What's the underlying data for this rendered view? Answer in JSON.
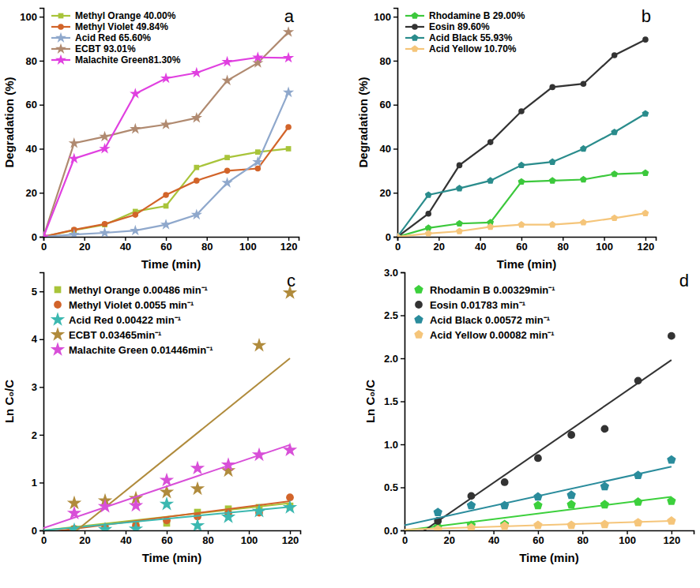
{
  "chart_data": [
    {
      "type": "line",
      "title": "a",
      "x_label": "Time (min)",
      "y_label": "Degradation (%)",
      "x": [
        0,
        15,
        30,
        45,
        60,
        75,
        90,
        105,
        120
      ],
      "xlim": [
        0,
        125
      ],
      "xticks": [
        0,
        20,
        40,
        60,
        80,
        100,
        120
      ],
      "ylim": [
        0,
        104
      ],
      "yticks": [
        0,
        20,
        40,
        60,
        80,
        100
      ],
      "legend": "upper left",
      "series": [
        {
          "name": "Methyl Orange 40.00%",
          "color": "#a8c43a",
          "marker": "square",
          "values": [
            0,
            3,
            5.5,
            11.5,
            14,
            31.5,
            36,
            38.5,
            40
          ]
        },
        {
          "name": "Methyl Violet 49.84%",
          "color": "#d2642a",
          "marker": "circle",
          "values": [
            0,
            3.2,
            5.8,
            10,
            19,
            25.5,
            30,
            31,
            49.84
          ]
        },
        {
          "name": "Acid Red 65.60%",
          "color": "#8fa8cc",
          "marker": "star",
          "values": [
            0,
            1,
            1.8,
            2.8,
            5.5,
            10,
            24.5,
            34,
            65.6
          ]
        },
        {
          "name": "ECBT 93.01%",
          "color": "#b08a70",
          "marker": "star",
          "values": [
            0,
            42.5,
            45.5,
            49,
            51,
            54,
            71,
            79,
            93.01
          ]
        },
        {
          "name": "Malachite Green81.30%",
          "color": "#e040e0",
          "marker": "star",
          "values": [
            0,
            35.5,
            40,
            65,
            72,
            74.5,
            79.5,
            81.5,
            81.3
          ]
        }
      ]
    },
    {
      "type": "line",
      "title": "b",
      "x_label": "Time (min)",
      "y_label": "Degradation (%)",
      "x": [
        0,
        15,
        30,
        45,
        60,
        75,
        90,
        105,
        120
      ],
      "xlim": [
        0,
        125
      ],
      "xticks": [
        0,
        20,
        40,
        60,
        80,
        100,
        120
      ],
      "ylim": [
        0,
        104
      ],
      "yticks": [
        0,
        20,
        40,
        60,
        80,
        100
      ],
      "legend": "upper left",
      "series": [
        {
          "name": "Rhodamine B 29.00%",
          "color": "#3cc83c",
          "marker": "pentagon",
          "values": [
            0,
            4,
            6,
            6.5,
            25,
            25.5,
            26,
            28.5,
            29
          ]
        },
        {
          "name": "Eosin 89.60%",
          "color": "#333333",
          "marker": "circle",
          "values": [
            0,
            10.5,
            32.5,
            43,
            57,
            68,
            69.5,
            82.5,
            89.6
          ]
        },
        {
          "name": "Acid Black 55.93%",
          "color": "#2a8c8c",
          "marker": "pentagon",
          "values": [
            0,
            19,
            22,
            25.5,
            32.5,
            34,
            40,
            47.5,
            55.93
          ]
        },
        {
          "name": "Acid Yellow 10.70%",
          "color": "#f5c57a",
          "marker": "pentagon",
          "values": [
            0,
            1.5,
            2.5,
            4.5,
            5.5,
            5.5,
            6.5,
            8.5,
            10.7
          ]
        }
      ]
    },
    {
      "type": "scatter",
      "title": "c",
      "x_label": "Time (min)",
      "y_label": "Ln C₀/C",
      "x": [
        15,
        30,
        45,
        60,
        75,
        90,
        105,
        120
      ],
      "xlim": [
        0,
        125
      ],
      "xticks": [
        0,
        20,
        40,
        60,
        80,
        100,
        120
      ],
      "ylim": [
        0,
        5.4
      ],
      "yticks": [
        0,
        1,
        2,
        3,
        4,
        5
      ],
      "legend": "upper left",
      "series": [
        {
          "name": "Methyl Orange 0.00486 min⁻¹",
          "color": "#a8c43a",
          "marker": "square",
          "values": [
            0.03,
            0.06,
            0.12,
            0.15,
            0.38,
            0.45,
            0.48,
            0.51
          ],
          "fit": {
            "x": [
              0,
              120
            ],
            "values": [
              0,
              0.57
            ]
          }
        },
        {
          "name": "Methyl Violet 0.0055 min⁻¹",
          "color": "#d2642a",
          "marker": "circle",
          "values": [
            0.03,
            0.06,
            0.1,
            0.21,
            0.29,
            0.36,
            0.37,
            0.69
          ],
          "fit": {
            "x": [
              0,
              120
            ],
            "values": [
              -0.05,
              0.61
            ]
          }
        },
        {
          "name": "Acid Red 0.00422 min⁻¹",
          "color": "#3cb8b0",
          "marker": "star",
          "values": [
            0.01,
            0.02,
            0.03,
            0.55,
            0.1,
            0.28,
            0.4,
            0.48
          ],
          "fit": {
            "x": [
              0,
              120
            ],
            "values": [
              0,
              0.49
            ]
          }
        },
        {
          "name": "ECBT 0.03465min⁻¹",
          "color": "#b08b3c",
          "marker": "star",
          "values": [
            0.57,
            0.62,
            0.67,
            0.8,
            0.87,
            1.25,
            3.87,
            4.97
          ],
          "fit": {
            "x": [
              0,
              120
            ],
            "values": [
              -0.56,
              3.6
            ]
          }
        },
        {
          "name": "Malachite Green 0.01446min⁻¹",
          "color": "#d84fd8",
          "marker": "star",
          "values": [
            0.36,
            0.5,
            0.52,
            1.05,
            1.3,
            1.37,
            1.58,
            1.68
          ],
          "fit": {
            "x": [
              0,
              120
            ],
            "values": [
              0.05,
              1.79
            ]
          }
        }
      ]
    },
    {
      "type": "scatter",
      "title": "d",
      "x_label": "Time (min)",
      "y_label": "Ln C₀/C",
      "x": [
        15,
        30,
        45,
        60,
        75,
        90,
        105,
        120
      ],
      "xlim": [
        0,
        130
      ],
      "xticks": [
        0,
        20,
        40,
        60,
        80,
        100,
        120
      ],
      "ylim": [
        0,
        3.0
      ],
      "yticks": [
        {
          "value": 0,
          "label": "0.0"
        },
        {
          "value": 0.5,
          "label": "0.5"
        },
        {
          "value": 1,
          "label": "1.0"
        },
        {
          "value": 1.5,
          "label": "1.5"
        },
        {
          "value": 2,
          "label": "2.0"
        },
        {
          "value": 2.5,
          "label": "2.5"
        },
        {
          "value": 3,
          "label": "3.0"
        }
      ],
      "legend": "upper left",
      "series": [
        {
          "name": "Rhodamin B 0.00329min⁻¹",
          "color": "#3cd03c",
          "marker": "pentagon",
          "values": [
            0.04,
            0.06,
            0.07,
            0.29,
            0.3,
            0.3,
            0.33,
            0.34
          ],
          "fit": {
            "x": [
              0,
              120
            ],
            "values": [
              0,
              0.39
            ]
          }
        },
        {
          "name": "Eosin 0.01783 min⁻¹",
          "color": "#333333",
          "marker": "circle",
          "values": [
            0.11,
            0.4,
            0.56,
            0.84,
            1.11,
            1.18,
            1.74,
            2.26
          ],
          "fit": {
            "x": [
              0,
              120
            ],
            "values": [
              -0.16,
              1.98
            ]
          }
        },
        {
          "name": "Acid Black 0.00572 min⁻¹",
          "color": "#2a8c9c",
          "marker": "pentagon",
          "values": [
            0.21,
            0.29,
            0.29,
            0.39,
            0.41,
            0.51,
            0.64,
            0.82
          ],
          "fit": {
            "x": [
              0,
              120
            ],
            "values": [
              0.06,
              0.74
            ]
          }
        },
        {
          "name": "Acid Yellow 0.00082 min⁻¹",
          "color": "#f5c57a",
          "marker": "pentagon",
          "values": [
            0.01,
            0.03,
            0.05,
            0.06,
            0.06,
            0.07,
            0.09,
            0.11
          ],
          "fit": {
            "x": [
              0,
              120
            ],
            "values": [
              0.01,
              0.11
            ]
          }
        }
      ]
    }
  ]
}
